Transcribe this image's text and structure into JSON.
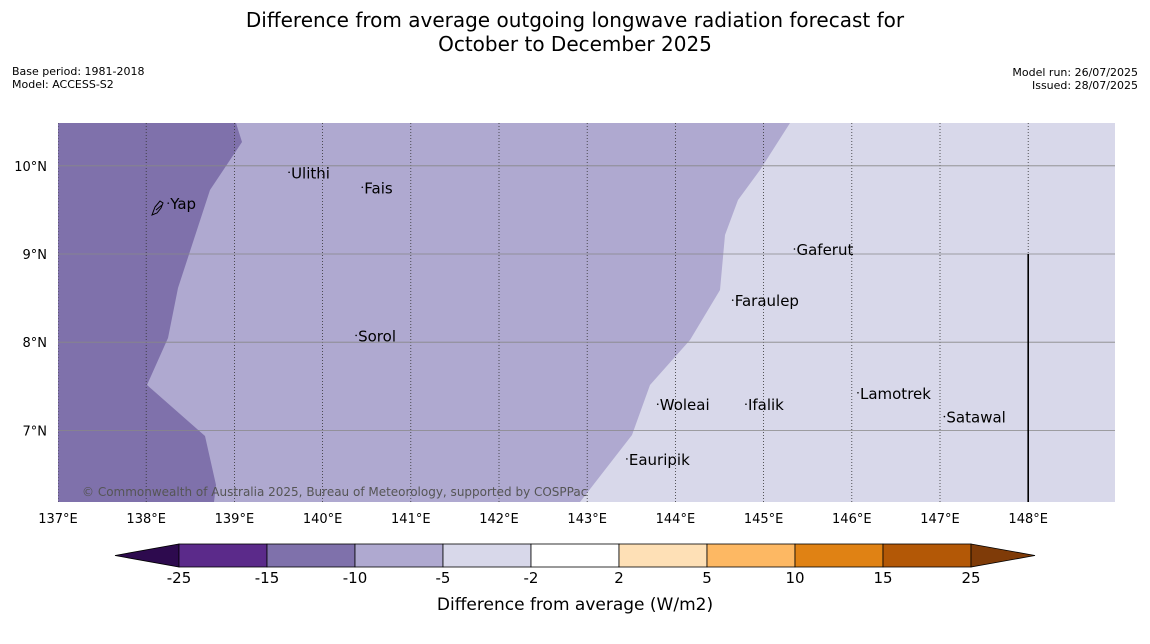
{
  "title": {
    "line1": "Difference from average outgoing longwave radiation forecast for",
    "line2": "October to December 2025"
  },
  "meta": {
    "base_period": "Base period: 1981-2018",
    "model": "Model: ACCESS-S2",
    "model_run": "Model run: 26/07/2025",
    "issued": "Issued: 28/07/2025"
  },
  "map": {
    "extent": {
      "lon_min": 137,
      "lon_max": 149,
      "lat_min": 6.2,
      "lat_max": 10.5
    },
    "lon_ticks": [
      {
        "lon": 137,
        "label": "137°E"
      },
      {
        "lon": 138,
        "label": "138°E"
      },
      {
        "lon": 139,
        "label": "139°E"
      },
      {
        "lon": 140,
        "label": "140°E"
      },
      {
        "lon": 141,
        "label": "141°E"
      },
      {
        "lon": 142,
        "label": "142°E"
      },
      {
        "lon": 143,
        "label": "143°E"
      },
      {
        "lon": 144,
        "label": "144°E"
      },
      {
        "lon": 145,
        "label": "145°E"
      },
      {
        "lon": 146,
        "label": "146°E"
      },
      {
        "lon": 147,
        "label": "147°E"
      },
      {
        "lon": 148,
        "label": "148°E"
      }
    ],
    "lat_ticks": [
      {
        "lat": 10,
        "label": "10°N"
      },
      {
        "lat": 9,
        "label": "9°N"
      },
      {
        "lat": 8,
        "label": "8°N"
      },
      {
        "lat": 7,
        "label": "7°N"
      }
    ],
    "colors": {
      "band_minus15_minus10": "#7f71ab",
      "band_minus10_minus5": "#afa9d0",
      "band_minus5_minus2": "#d8d8ea"
    },
    "boundary_line": {
      "lon": 148,
      "lat_min": 6.2,
      "lat_max": 9.0,
      "color": "#000000"
    },
    "places": [
      {
        "name": "Yap",
        "lon": 138.25,
        "lat": 9.52
      },
      {
        "name": "Ulithi",
        "lon": 139.62,
        "lat": 9.87
      },
      {
        "name": "Fais",
        "lon": 140.45,
        "lat": 9.7
      },
      {
        "name": "Gaferut",
        "lon": 145.35,
        "lat": 9.0
      },
      {
        "name": "Faraulep",
        "lon": 144.65,
        "lat": 8.42
      },
      {
        "name": "Sorol",
        "lon": 140.38,
        "lat": 8.02
      },
      {
        "name": "Lamotrek",
        "lon": 146.07,
        "lat": 7.37
      },
      {
        "name": "Woleai",
        "lon": 143.8,
        "lat": 7.24
      },
      {
        "name": "Ifalik",
        "lon": 144.8,
        "lat": 7.24
      },
      {
        "name": "Satawal",
        "lon": 147.05,
        "lat": 7.1
      },
      {
        "name": "Eauripik",
        "lon": 143.45,
        "lat": 6.62
      }
    ],
    "copyright": "© Commonwealth of Australia 2025, Bureau of Meteorology, supported by COSPPac"
  },
  "colorbar": {
    "title": "Difference from average (W/m2)",
    "boundaries": [
      "-25",
      "-15",
      "-10",
      "-5",
      "-2",
      "2",
      "5",
      "10",
      "15",
      "25"
    ],
    "colors": [
      "#5b2a8a",
      "#7f71ab",
      "#afa9d0",
      "#d8d8ea",
      "#ffffff",
      "#fee0b6",
      "#fdb863",
      "#e08214",
      "#b35806"
    ],
    "under_color": "#2d0a4e",
    "over_color": "#7f3b08"
  }
}
